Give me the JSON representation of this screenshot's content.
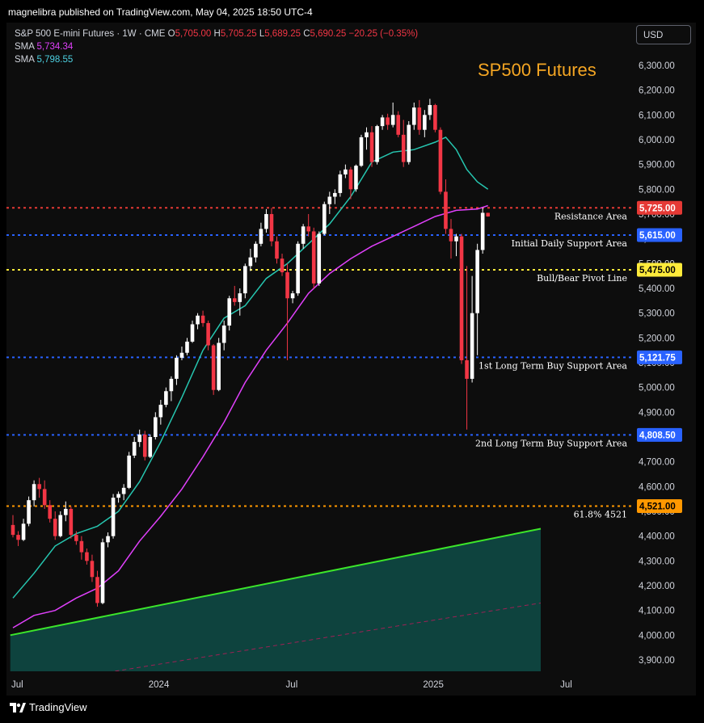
{
  "publisher_line": "magnelibra published on TradingView.com, May 04, 2025 18:50 UTC-4",
  "legend": {
    "symbol": "S&P 500 E-mini Futures · 1W · CME",
    "open_label": "O",
    "open": "5,705.00",
    "high_label": "H",
    "high": "5,705.25",
    "low_label": "L",
    "low": "5,689.25",
    "close_label": "C",
    "close": "5,690.25",
    "change": "−20.25 (−0.35%)",
    "sma1_label": "SMA",
    "sma1_value": "5,734.34",
    "sma2_label": "SMA",
    "sma2_value": "5,798.55"
  },
  "currency_button": "USD",
  "footer_brand": "TradingView",
  "colors": {
    "up": "#ffffff",
    "down": "#f23645",
    "sma_fast": "#26c6b0",
    "sma_slow": "#e040fb",
    "resistance": "#e53935",
    "support_blue": "#2962ff",
    "pivot": "#ffeb3b",
    "fib": "#ff9800",
    "trendline": "#3ce62a",
    "fill": "#0f4d48",
    "title": "#f5a623"
  },
  "chart_data": {
    "type": "candlestick",
    "title": "SP500 Futures",
    "ylim": [
      3850,
      6380
    ],
    "y_ticks": [
      "6,300.00",
      "6,200.00",
      "6,100.00",
      "6,000.00",
      "5,900.00",
      "5,800.00",
      "5,700.00",
      "5,600.00",
      "5,500.00",
      "5,400.00",
      "5,300.00",
      "5,200.00",
      "5,100.00",
      "5,000.00",
      "4,900.00",
      "4,800.00",
      "4,700.00",
      "4,600.00",
      "4,500.00",
      "4,400.00",
      "4,300.00",
      "4,200.00",
      "4,100.00",
      "4,000.00",
      "3,900.00"
    ],
    "x_ticks": [
      {
        "label": "Jul",
        "t": 0
      },
      {
        "label": "2024",
        "t": 26
      },
      {
        "label": "Jul",
        "t": 52
      },
      {
        "label": "2025",
        "t": 78
      },
      {
        "label": "Jul",
        "t": 104
      }
    ],
    "candles": [
      [
        4445,
        4485,
        4395,
        4405
      ],
      [
        4405,
        4420,
        4360,
        4385
      ],
      [
        4385,
        4470,
        4380,
        4450
      ],
      [
        4450,
        4560,
        4440,
        4545
      ],
      [
        4545,
        4625,
        4520,
        4610
      ],
      [
        4610,
        4635,
        4555,
        4590
      ],
      [
        4590,
        4625,
        4510,
        4525
      ],
      [
        4525,
        4545,
        4455,
        4470
      ],
      [
        4470,
        4500,
        4385,
        4400
      ],
      [
        4400,
        4500,
        4395,
        4485
      ],
      [
        4485,
        4540,
        4460,
        4510
      ],
      [
        4510,
        4520,
        4390,
        4405
      ],
      [
        4405,
        4420,
        4365,
        4380
      ],
      [
        4380,
        4400,
        4305,
        4335
      ],
      [
        4335,
        4350,
        4285,
        4300
      ],
      [
        4300,
        4325,
        4215,
        4235
      ],
      [
        4235,
        4260,
        4115,
        4130
      ],
      [
        4130,
        4390,
        4125,
        4375
      ],
      [
        4375,
        4415,
        4355,
        4400
      ],
      [
        4400,
        4570,
        4390,
        4555
      ],
      [
        4555,
        4580,
        4535,
        4570
      ],
      [
        4570,
        4610,
        4545,
        4595
      ],
      [
        4595,
        4740,
        4590,
        4725
      ],
      [
        4725,
        4800,
        4715,
        4780
      ],
      [
        4780,
        4830,
        4760,
        4810
      ],
      [
        4810,
        4825,
        4705,
        4720
      ],
      [
        4720,
        4810,
        4715,
        4800
      ],
      [
        4800,
        4900,
        4790,
        4880
      ],
      [
        4880,
        4950,
        4850,
        4930
      ],
      [
        4930,
        5000,
        4920,
        4985
      ],
      [
        4985,
        5045,
        4945,
        5035
      ],
      [
        5035,
        5130,
        5010,
        5120
      ],
      [
        5120,
        5165,
        5110,
        5140
      ],
      [
        5140,
        5200,
        5130,
        5185
      ],
      [
        5185,
        5270,
        5180,
        5255
      ],
      [
        5255,
        5300,
        5235,
        5290
      ],
      [
        5290,
        5310,
        5245,
        5260
      ],
      [
        5260,
        5270,
        5150,
        5170
      ],
      [
        5170,
        5175,
        4970,
        4990
      ],
      [
        4990,
        5200,
        4985,
        5180
      ],
      [
        5180,
        5270,
        5150,
        5250
      ],
      [
        5250,
        5370,
        5230,
        5360
      ],
      [
        5360,
        5410,
        5330,
        5345
      ],
      [
        5345,
        5400,
        5290,
        5380
      ],
      [
        5380,
        5500,
        5360,
        5490
      ],
      [
        5490,
        5560,
        5470,
        5525
      ],
      [
        5525,
        5590,
        5505,
        5580
      ],
      [
        5580,
        5665,
        5570,
        5640
      ],
      [
        5640,
        5720,
        5625,
        5700
      ],
      [
        5700,
        5725,
        5570,
        5590
      ],
      [
        5590,
        5610,
        5500,
        5520
      ],
      [
        5520,
        5540,
        5450,
        5465
      ],
      [
        5465,
        5500,
        5110,
        5360
      ],
      [
        5360,
        5390,
        5340,
        5380
      ],
      [
        5380,
        5590,
        5370,
        5580
      ],
      [
        5580,
        5660,
        5560,
        5650
      ],
      [
        5650,
        5700,
        5610,
        5630
      ],
      [
        5630,
        5645,
        5400,
        5420
      ],
      [
        5420,
        5630,
        5410,
        5620
      ],
      [
        5620,
        5750,
        5615,
        5740
      ],
      [
        5740,
        5790,
        5700,
        5770
      ],
      [
        5770,
        5800,
        5740,
        5785
      ],
      [
        5785,
        5875,
        5770,
        5860
      ],
      [
        5860,
        5900,
        5845,
        5880
      ],
      [
        5880,
        5890,
        5760,
        5800
      ],
      [
        5800,
        5900,
        5790,
        5895
      ],
      [
        5895,
        6020,
        5890,
        6010
      ],
      [
        6010,
        6050,
        5960,
        6030
      ],
      [
        6030,
        6055,
        5890,
        5910
      ],
      [
        5910,
        6060,
        5900,
        6055
      ],
      [
        6055,
        6100,
        6040,
        6090
      ],
      [
        6090,
        6105,
        6040,
        6060
      ],
      [
        6060,
        6150,
        6050,
        6100
      ],
      [
        6100,
        6115,
        6010,
        6020
      ],
      [
        6020,
        6080,
        5890,
        5910
      ],
      [
        5910,
        6075,
        5900,
        6060
      ],
      [
        6060,
        6150,
        6040,
        6130
      ],
      [
        6130,
        6160,
        6020,
        6040
      ],
      [
        6040,
        6120,
        6010,
        6100
      ],
      [
        6100,
        6165,
        6080,
        6140
      ],
      [
        6140,
        6145,
        6030,
        6040
      ],
      [
        6040,
        6050,
        5780,
        5790
      ],
      [
        5790,
        5840,
        5620,
        5640
      ],
      [
        5640,
        5680,
        5520,
        5590
      ],
      [
        5590,
        5620,
        5530,
        5610
      ],
      [
        5610,
        5620,
        5095,
        5110
      ],
      [
        5110,
        5490,
        4830,
        5035
      ],
      [
        5035,
        5450,
        5020,
        5300
      ],
      [
        5300,
        5580,
        5130,
        5555
      ],
      [
        5555,
        5725,
        5540,
        5705
      ],
      [
        5705,
        5705.25,
        5689.25,
        5690.25
      ]
    ],
    "series": [
      {
        "name": "SMA",
        "value_label": "5,798.55",
        "points": [
          [
            0,
            4150
          ],
          [
            4,
            4250
          ],
          [
            8,
            4360
          ],
          [
            12,
            4410
          ],
          [
            16,
            4440
          ],
          [
            20,
            4500
          ],
          [
            24,
            4620
          ],
          [
            28,
            4780
          ],
          [
            32,
            4960
          ],
          [
            36,
            5150
          ],
          [
            40,
            5280
          ],
          [
            44,
            5330
          ],
          [
            48,
            5440
          ],
          [
            52,
            5500
          ],
          [
            56,
            5580
          ],
          [
            60,
            5660
          ],
          [
            64,
            5770
          ],
          [
            68,
            5910
          ],
          [
            72,
            5950
          ],
          [
            76,
            5960
          ],
          [
            80,
            5990
          ],
          [
            82,
            6010
          ],
          [
            84,
            5960
          ],
          [
            86,
            5880
          ],
          [
            88,
            5830
          ],
          [
            90,
            5800
          ]
        ]
      },
      {
        "name": "SMA",
        "value_label": "5,734.34",
        "points": [
          [
            0,
            4030
          ],
          [
            4,
            4080
          ],
          [
            8,
            4100
          ],
          [
            12,
            4150
          ],
          [
            16,
            4190
          ],
          [
            20,
            4260
          ],
          [
            24,
            4380
          ],
          [
            28,
            4480
          ],
          [
            32,
            4590
          ],
          [
            36,
            4720
          ],
          [
            40,
            4860
          ],
          [
            44,
            5020
          ],
          [
            48,
            5150
          ],
          [
            52,
            5260
          ],
          [
            56,
            5380
          ],
          [
            60,
            5460
          ],
          [
            64,
            5520
          ],
          [
            68,
            5570
          ],
          [
            72,
            5610
          ],
          [
            76,
            5650
          ],
          [
            80,
            5690
          ],
          [
            84,
            5715
          ],
          [
            88,
            5720
          ],
          [
            90,
            5734
          ]
        ]
      }
    ],
    "levels": [
      {
        "value": 5725.0,
        "label": "5,725.00",
        "annotation": "Resistance Area",
        "color": "#e53935"
      },
      {
        "value": 5615.0,
        "label": "5,615.00",
        "annotation": "Initial Daily Support Area",
        "color": "#2962ff"
      },
      {
        "value": 5475.0,
        "label": "5,475.00",
        "annotation": "Bull/Bear Pivot Line",
        "color": "#ffeb3b"
      },
      {
        "value": 5121.75,
        "label": "5,121.75",
        "annotation": "1st Long Term Buy Support Area",
        "color": "#2962ff"
      },
      {
        "value": 4808.5,
        "label": "4,808.50",
        "annotation": "2nd Long Term Buy Support Area",
        "color": "#2962ff"
      },
      {
        "value": 4521.0,
        "label": "4,521.00",
        "annotation": "61.8% 4521",
        "color": "#ff9800"
      }
    ],
    "trendline": {
      "start": [
        -0.5,
        4000
      ],
      "end": [
        100,
        4430
      ]
    },
    "dashed_line": {
      "start": [
        18,
        3850
      ],
      "end": [
        100,
        4130
      ]
    }
  }
}
